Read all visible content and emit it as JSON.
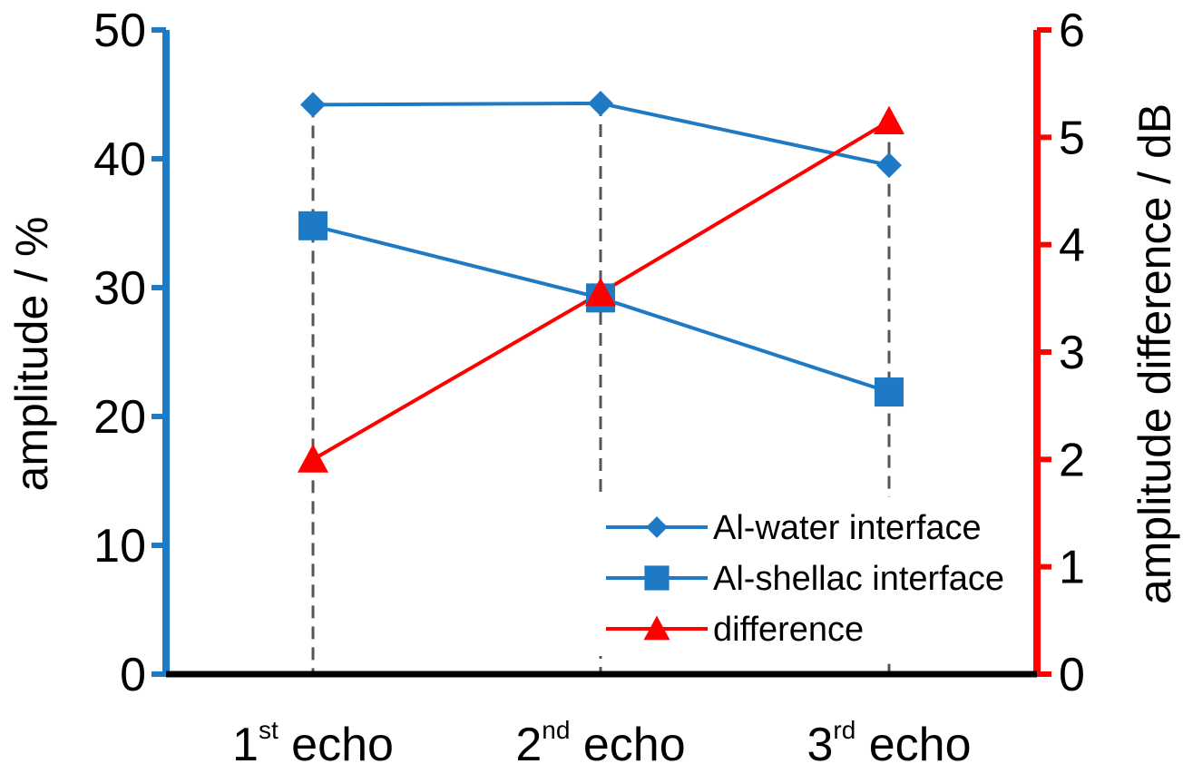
{
  "chart_data": {
    "type": "line",
    "categories": [
      {
        "num": "1",
        "sup": "st",
        "rest": " echo"
      },
      {
        "num": "2",
        "sup": "nd",
        "rest": " echo"
      },
      {
        "num": "3",
        "sup": "rd",
        "rest": " echo"
      }
    ],
    "left_axis": {
      "label": "amplitude / %",
      "range": [
        0,
        50
      ],
      "ticks": [
        "0",
        "10",
        "20",
        "30",
        "40",
        "50"
      ],
      "color": "#1f7ac6"
    },
    "right_axis": {
      "label": "amplitude difference / dB",
      "range": [
        0,
        6
      ],
      "ticks": [
        "0",
        "1",
        "2",
        "3",
        "4",
        "5",
        "6"
      ],
      "color": "#ff0000"
    },
    "series": [
      {
        "name": "Al-water interface",
        "axis": "left",
        "marker": "diamond",
        "color": "#1f7ac6",
        "values": [
          44.2,
          44.3,
          39.5
        ]
      },
      {
        "name": "Al-shellac interface",
        "axis": "left",
        "marker": "square",
        "color": "#1f7ac6",
        "values": [
          34.8,
          29.2,
          21.9
        ]
      },
      {
        "name": "difference",
        "axis": "right",
        "marker": "triangle",
        "color": "#ff0000",
        "values": [
          2.0,
          3.55,
          5.15
        ]
      }
    ],
    "legend_position": "bottom-right",
    "grid": false,
    "guide_lines": "dashed vertical drop lines at each category"
  }
}
